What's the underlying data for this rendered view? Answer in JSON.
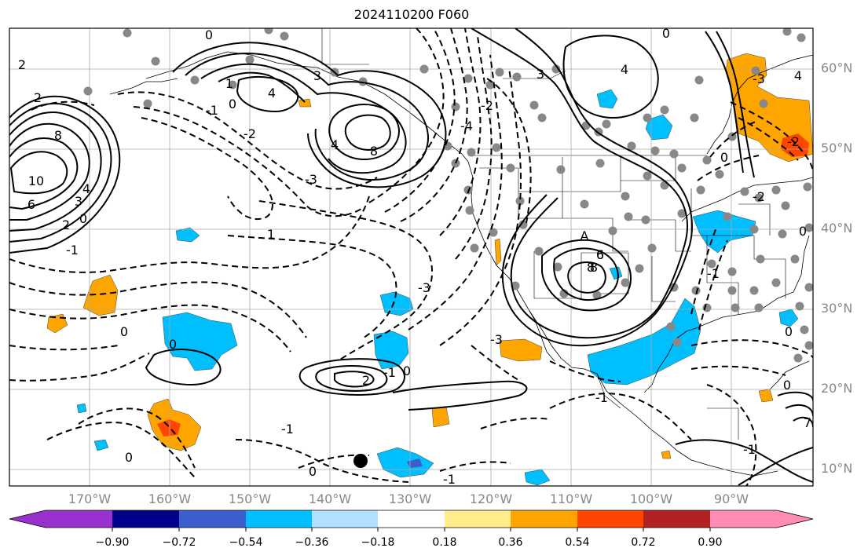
{
  "title": "2024110200 F060",
  "lat_labels": [
    "60°N",
    "50°N",
    "40°N",
    "30°N",
    "20°N",
    "10°N"
  ],
  "lon_labels": [
    "170°W",
    "160°W",
    "150°W",
    "140°W",
    "130°W",
    "120°W",
    "110°W",
    "100°W",
    "90°W"
  ],
  "colorbar": {
    "ticks": [
      "−0.90",
      "−0.72",
      "−0.54",
      "−0.36",
      "−0.18",
      "0.18",
      "0.36",
      "0.54",
      "0.72",
      "0.90"
    ],
    "colors": [
      "#9932cc",
      "#00008b",
      "#3a5fcd",
      "#00bfff",
      "#b0e2ff",
      "#ffffff",
      "#ffec8b",
      "#ffa500",
      "#ff4500",
      "#b22222",
      "#ff8cb4"
    ]
  },
  "contour_labels": [
    "0",
    "1",
    "0",
    "4",
    "3",
    "4",
    "2",
    "-1",
    "2",
    "0",
    "-3",
    "-2",
    "8",
    "8",
    "10",
    "6",
    "4",
    "3",
    "2",
    "0",
    "-1",
    "4",
    "8",
    "6",
    "3",
    "-3",
    "-4",
    "0",
    "-3",
    "-1",
    "-2",
    "4",
    "8",
    "6",
    "-1",
    "-3",
    "-2",
    "0",
    "0",
    "2",
    "-1",
    "0",
    "0",
    "-1",
    "-1",
    "0",
    "0",
    "1",
    "-1",
    "-2",
    "0",
    "0",
    "A",
    "7"
  ],
  "fill_colors": {
    "blue": "#00bfff",
    "light_blue": "#b0e2ff",
    "dark_blue": "#3a5fcd",
    "orange": "#ffa500",
    "red": "#ff4500",
    "dot": "#888888",
    "gold": "#ffec8b"
  },
  "marker": "black-dot"
}
